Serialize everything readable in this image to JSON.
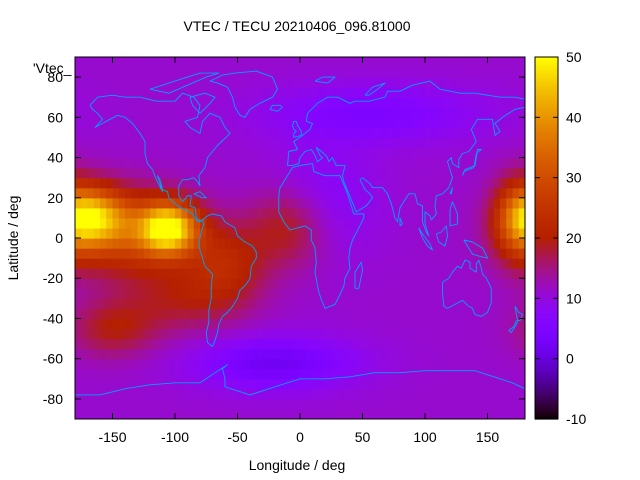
{
  "chart_data": {
    "type": "heatmap",
    "title": "VTEC / TECU 20210406_096.81000",
    "xlabel": "Longitude / deg",
    "ylabel": "Latitude / deg",
    "key_label": "'Vtec_",
    "xlim": [
      -180,
      180
    ],
    "ylim": [
      -90,
      90
    ],
    "xticks": [
      "-150",
      "-100",
      "-50",
      "0",
      "50",
      "100",
      "150"
    ],
    "xtick_values": [
      -150,
      -100,
      -50,
      0,
      50,
      100,
      150
    ],
    "yticks": [
      "80",
      "60",
      "40",
      "20",
      "0",
      "-20",
      "-40",
      "-60",
      "-80"
    ],
    "ytick_values": [
      80,
      60,
      40,
      20,
      0,
      -20,
      -40,
      -60,
      -80
    ],
    "colorbar": {
      "range": [
        -10,
        50
      ],
      "ticks": [
        "50",
        "40",
        "30",
        "20",
        "10",
        "0",
        "-10"
      ],
      "tick_values": [
        50,
        40,
        30,
        20,
        10,
        0,
        -10
      ],
      "colormap": "gnuplot-traf"
    },
    "features": [
      {
        "name": "background",
        "value": 11
      },
      {
        "name": "equatorial-anomaly-peak-americas",
        "lon": -105,
        "lat": 5,
        "value": 45
      },
      {
        "name": "equatorial-anomaly-pacific",
        "lon": -165,
        "lat": 10,
        "value": 38
      },
      {
        "name": "equatorial-anomaly-dateline",
        "lon": 175,
        "lat": 10,
        "value": 34
      },
      {
        "name": "southern-trough",
        "lon": -20,
        "lat": -62,
        "value": 2
      },
      {
        "name": "northern-trough",
        "lon": 60,
        "lat": 62,
        "value": 5
      }
    ],
    "coastline_color": "#00a0ff"
  }
}
